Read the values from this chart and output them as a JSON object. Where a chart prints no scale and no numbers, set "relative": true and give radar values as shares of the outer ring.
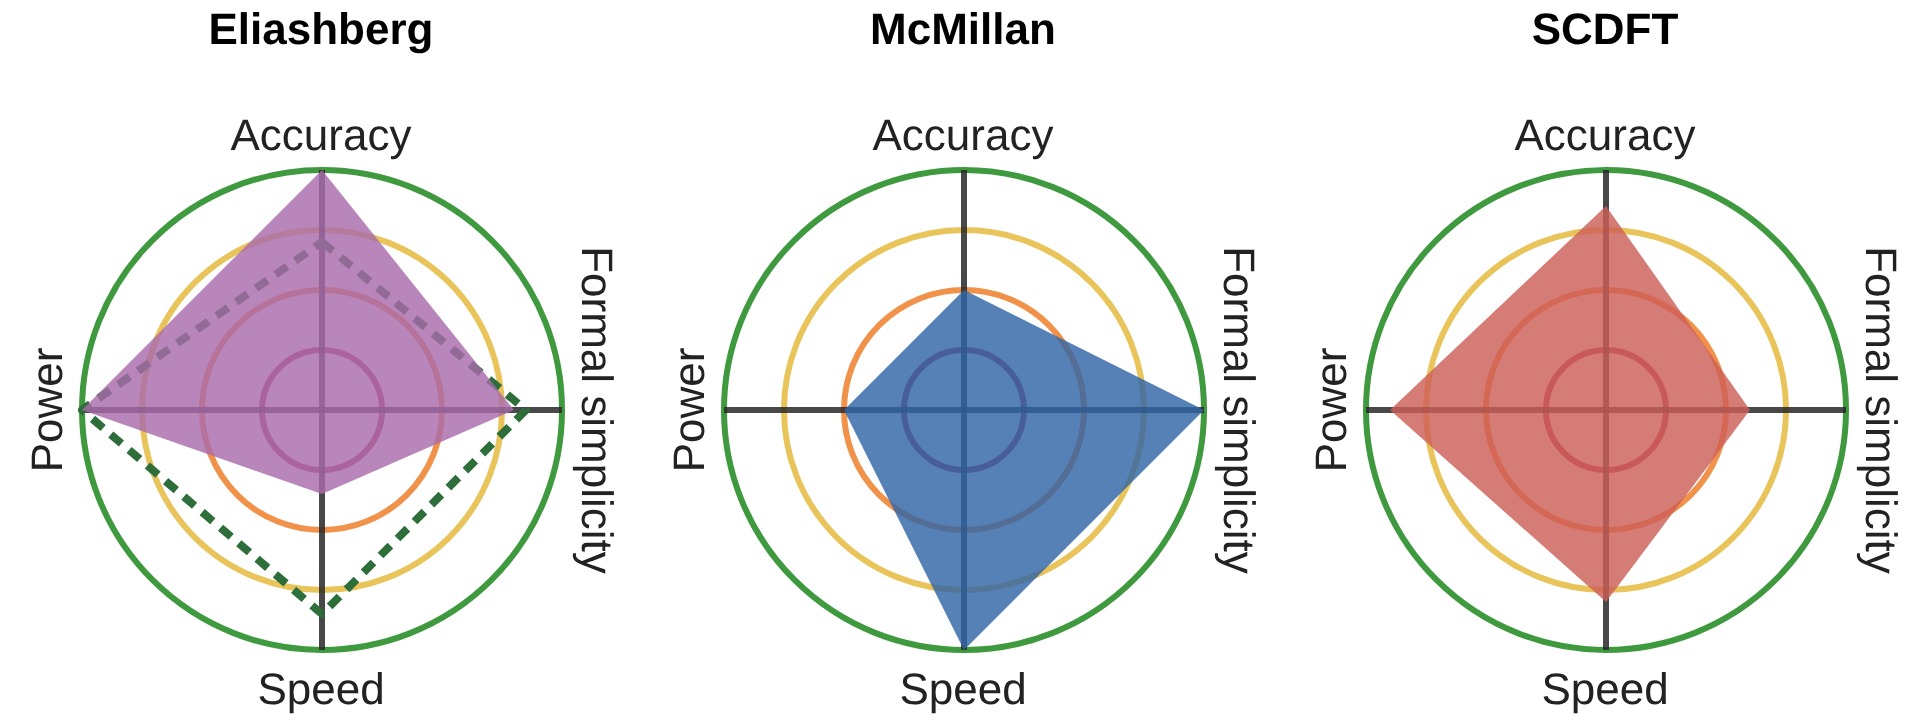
{
  "chart_data": [
    {
      "type": "radar",
      "title": "Eliashberg",
      "categories": [
        "Accuracy",
        "Formal simplicity",
        "Speed",
        "Power"
      ],
      "relative": true,
      "grid": true,
      "legend": false,
      "series": [
        {
          "color": "#a86bac",
          "values": [
            1.0,
            0.8,
            0.35,
            1.0
          ]
        },
        {
          "color": "#2e6e3a",
          "values": [
            0.7,
            0.85,
            0.85,
            1.0
          ],
          "line_style": "dashed"
        }
      ]
    },
    {
      "type": "radar",
      "title": "McMillan",
      "categories": [
        "Accuracy",
        "Formal simplicity",
        "Speed",
        "Power"
      ],
      "relative": true,
      "grid": true,
      "legend": false,
      "series": [
        {
          "color": "#2e64a5",
          "values": [
            0.5,
            1.0,
            1.0,
            0.5
          ]
        }
      ]
    },
    {
      "type": "radar",
      "title": "SCDFT",
      "categories": [
        "Accuracy",
        "Formal simplicity",
        "Speed",
        "Power"
      ],
      "relative": true,
      "grid": true,
      "legend": false,
      "series": [
        {
          "color": "#cd5f57",
          "values": [
            0.85,
            0.6,
            0.8,
            0.9
          ]
        }
      ]
    }
  ]
}
